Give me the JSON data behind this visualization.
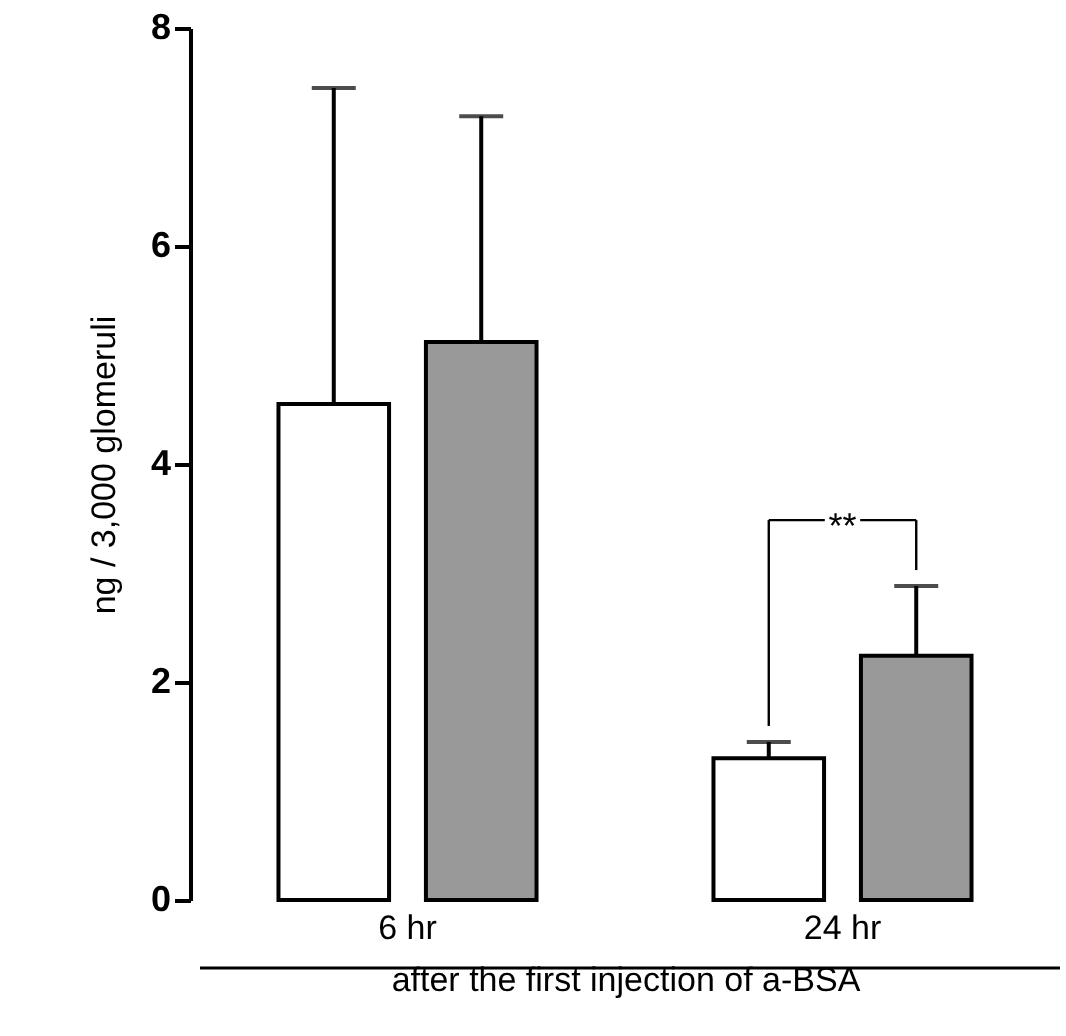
{
  "chart_data": {
    "type": "bar",
    "categories": [
      "6 hr",
      "24 hr"
    ],
    "series": [
      {
        "color": "#ffffff",
        "values": [
          4.55,
          1.3
        ],
        "errors": [
          [
            4.55,
            7.45
          ],
          [
            1.3,
            1.45
          ]
        ]
      },
      {
        "color": "#999999",
        "values": [
          5.12,
          2.24
        ],
        "errors": [
          [
            5.12,
            7.19
          ],
          [
            2.24,
            2.88
          ]
        ]
      }
    ],
    "ylabel": "ng / 3,000 glomeruli",
    "xlabel": "after the first injection of a-BSA",
    "ylim": [
      0,
      8
    ],
    "yticks": [
      0,
      2,
      4,
      6,
      8
    ],
    "grid": false,
    "annotations": [
      "**"
    ]
  }
}
